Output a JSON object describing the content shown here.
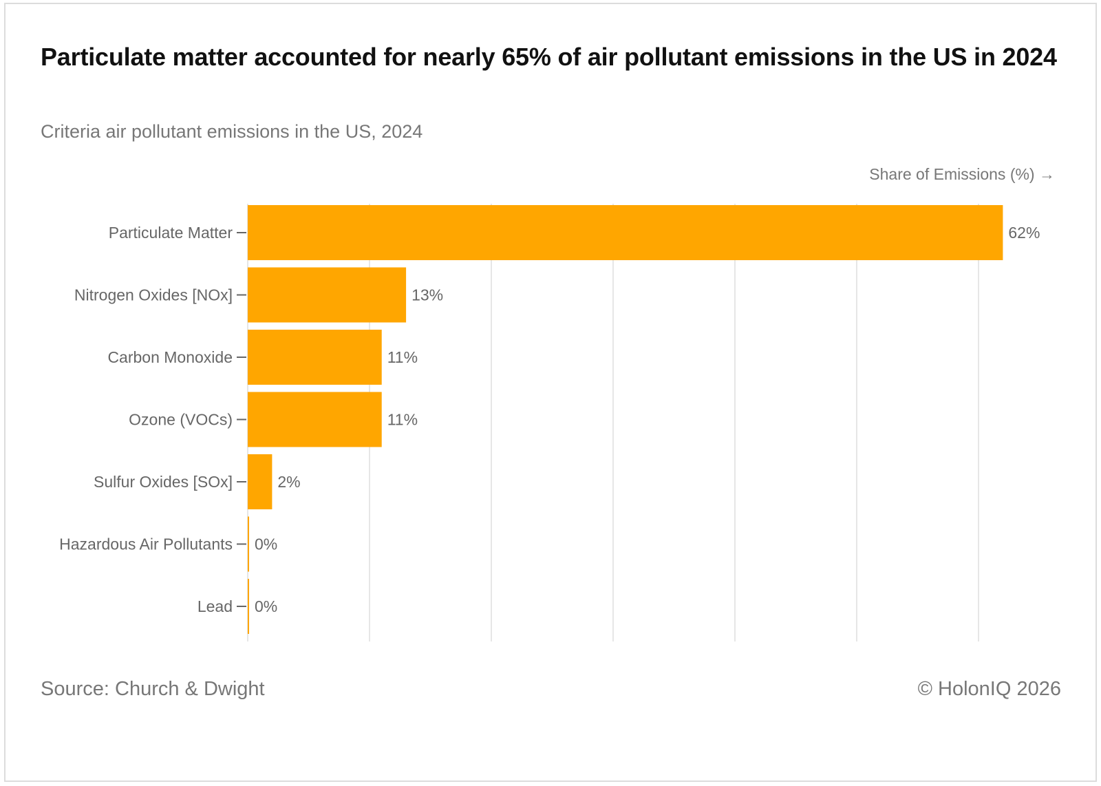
{
  "title": "Particulate matter accounted for nearly 65% of air pollutant emissions in the US in 2024",
  "subtitle": "Criteria air pollutant emissions in the US, 2024",
  "source": "Source: Church & Dwight",
  "copyright": "© HolonIQ 2026",
  "chart_data": {
    "type": "bar",
    "orientation": "horizontal",
    "title": "Particulate matter accounted for nearly 65% of air pollutant emissions in the US in 2024",
    "xlabel": "Share of Emissions (%) →",
    "ylabel": "",
    "categories": [
      "Particulate Matter",
      "Nitrogen Oxides [NOx]",
      "Carbon Monoxide",
      "Ozone (VOCs)",
      "Sulfur Oxides [SOx]",
      "Hazardous Air Pollutants",
      "Lead"
    ],
    "values": [
      62,
      13,
      11,
      11,
      2,
      0,
      0
    ],
    "data_labels": [
      "62%",
      "13%",
      "11%",
      "11%",
      "2%",
      "0%",
      "0%"
    ],
    "xlim": [
      0,
      65
    ],
    "gridlines": [
      0,
      10,
      20,
      30,
      40,
      50,
      60
    ],
    "grid": true,
    "bar_color": "#FFA600"
  }
}
